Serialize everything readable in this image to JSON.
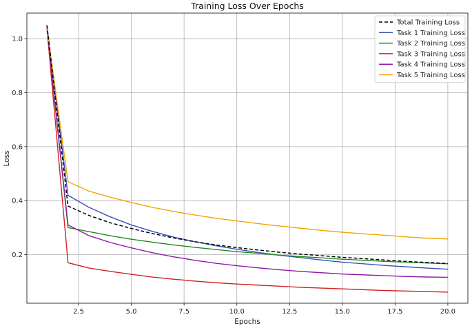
{
  "chart_data": {
    "type": "line",
    "title": "Training Loss Over Epochs",
    "xlabel": "Epochs",
    "ylabel": "Loss",
    "xlim": [
      0.05,
      20.95
    ],
    "ylim": [
      0.02,
      1.095
    ],
    "xticks": [
      2.5,
      5.0,
      7.5,
      10.0,
      12.5,
      15.0,
      17.5,
      20.0
    ],
    "xtick_labels": [
      "2.5",
      "5.0",
      "7.5",
      "10.0",
      "12.5",
      "15.0",
      "17.5",
      "20.0"
    ],
    "yticks": [
      0.2,
      0.4,
      0.6,
      0.8,
      1.0
    ],
    "ytick_labels": [
      "0.2",
      "0.4",
      "0.6",
      "0.8",
      "1.0"
    ],
    "grid": true,
    "legend_position": "top-right",
    "x": [
      1,
      2,
      3,
      4,
      5,
      6,
      7,
      8,
      9,
      10,
      11,
      12,
      13,
      14,
      15,
      16,
      17,
      18,
      19,
      20
    ],
    "series": [
      {
        "name": "Total Training Loss",
        "color": "#000000",
        "dash": "dashed",
        "values": [
          1.05,
          0.38,
          0.345,
          0.318,
          0.297,
          0.278,
          0.262,
          0.248,
          0.236,
          0.226,
          0.217,
          0.209,
          0.202,
          0.196,
          0.19,
          0.185,
          0.18,
          0.175,
          0.171,
          0.167
        ]
      },
      {
        "name": "Task 1 Training Loss",
        "color": "#3a4fbd",
        "dash": "solid",
        "values": [
          1.05,
          0.42,
          0.375,
          0.34,
          0.31,
          0.286,
          0.265,
          0.248,
          0.233,
          0.22,
          0.208,
          0.198,
          0.189,
          0.18,
          0.172,
          0.166,
          0.16,
          0.155,
          0.15,
          0.146
        ]
      },
      {
        "name": "Task 2 Training Loss",
        "color": "#1e8a1e",
        "dash": "solid",
        "values": [
          1.04,
          0.3,
          0.285,
          0.27,
          0.257,
          0.246,
          0.236,
          0.227,
          0.219,
          0.211,
          0.205,
          0.198,
          0.193,
          0.188,
          0.183,
          0.179,
          0.175,
          0.172,
          0.169,
          0.166
        ]
      },
      {
        "name": "Task 3 Training Loss",
        "color": "#d42020",
        "dash": "solid",
        "values": [
          1.04,
          0.17,
          0.15,
          0.138,
          0.127,
          0.117,
          0.109,
          0.102,
          0.096,
          0.091,
          0.087,
          0.083,
          0.079,
          0.076,
          0.073,
          0.07,
          0.067,
          0.065,
          0.063,
          0.061
        ]
      },
      {
        "name": "Task 4 Training Loss",
        "color": "#8e1aa6",
        "dash": "solid",
        "values": [
          1.04,
          0.31,
          0.27,
          0.245,
          0.225,
          0.207,
          0.192,
          0.179,
          0.168,
          0.159,
          0.151,
          0.144,
          0.138,
          0.133,
          0.128,
          0.125,
          0.122,
          0.119,
          0.117,
          0.116
        ]
      },
      {
        "name": "Task 5 Training Loss",
        "color": "#f2a500",
        "dash": "solid",
        "values": [
          1.04,
          0.47,
          0.435,
          0.413,
          0.393,
          0.375,
          0.36,
          0.347,
          0.335,
          0.325,
          0.315,
          0.306,
          0.298,
          0.29,
          0.283,
          0.277,
          0.272,
          0.266,
          0.261,
          0.258
        ]
      }
    ]
  }
}
